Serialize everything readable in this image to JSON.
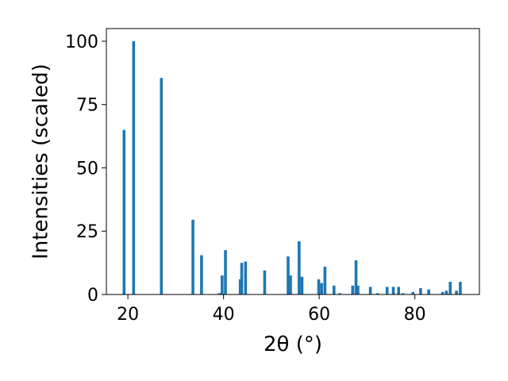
{
  "chart_data": {
    "type": "bar",
    "xlabel": "2θ (°)",
    "ylabel": "Intensities (scaled)",
    "xlim": [
      15.5,
      93.5
    ],
    "ylim": [
      0,
      105
    ],
    "xticks": [
      20,
      40,
      60,
      80
    ],
    "yticks": [
      0,
      25,
      50,
      75,
      100
    ],
    "bar_color": "#1f77b4",
    "bar_width": 0.6,
    "grid": false,
    "x": [
      19.2,
      21.2,
      27.0,
      33.6,
      35.4,
      39.1,
      39.7,
      40.4,
      43.5,
      43.8,
      44.6,
      48.6,
      53.5,
      54.0,
      55.8,
      56.4,
      59.9,
      60.5,
      61.2,
      63.1,
      64.3,
      67.0,
      67.7,
      68.1,
      70.7,
      72.2,
      74.2,
      75.5,
      76.6,
      77.5,
      79.6,
      81.2,
      82.9,
      85.8,
      86.6,
      87.4,
      88.7,
      89.5
    ],
    "values": [
      65,
      100,
      85.5,
      29.5,
      15.5,
      0.5,
      7.5,
      17.5,
      6,
      12.5,
      13,
      9.5,
      15,
      7.5,
      21,
      7,
      6,
      4.5,
      11,
      3.5,
      0.5,
      3.5,
      13.5,
      3.5,
      3,
      0.5,
      3,
      3,
      3,
      0.5,
      1,
      2.5,
      2,
      1,
      1.5,
      5,
      1.5,
      5
    ]
  }
}
